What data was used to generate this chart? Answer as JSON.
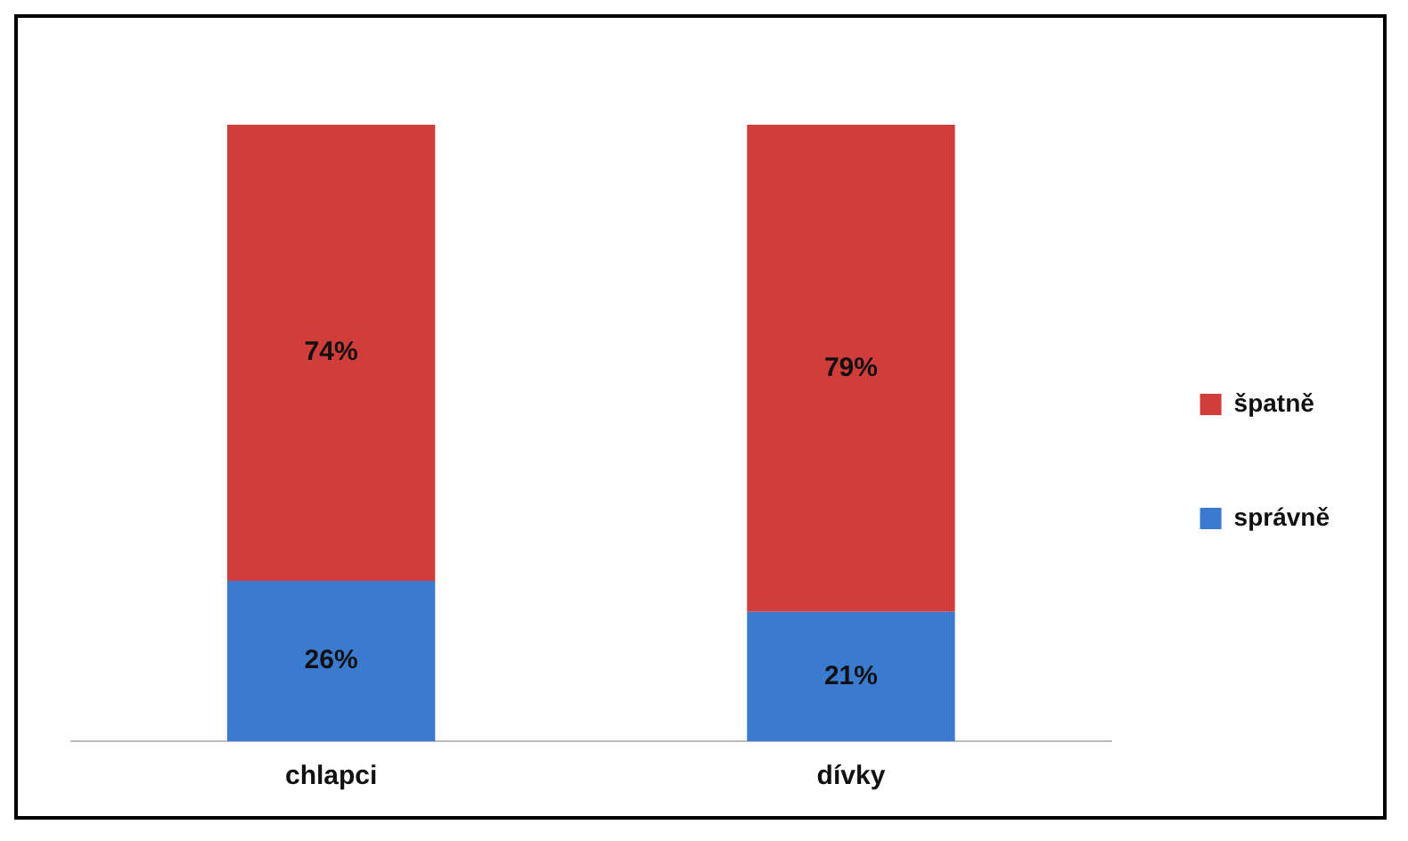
{
  "chart_data": {
    "type": "bar",
    "stacked": true,
    "categories": [
      "chlapci",
      "dívky"
    ],
    "series": [
      {
        "name": "správně",
        "color": "#3a7bd0",
        "values": [
          26,
          21
        ],
        "value_labels": [
          "26%",
          "21%"
        ]
      },
      {
        "name": "špatně",
        "color": "#d03d3a",
        "values": [
          74,
          79
        ],
        "value_labels": [
          "74%",
          "79%"
        ]
      }
    ],
    "legend": "right",
    "grid": false
  }
}
